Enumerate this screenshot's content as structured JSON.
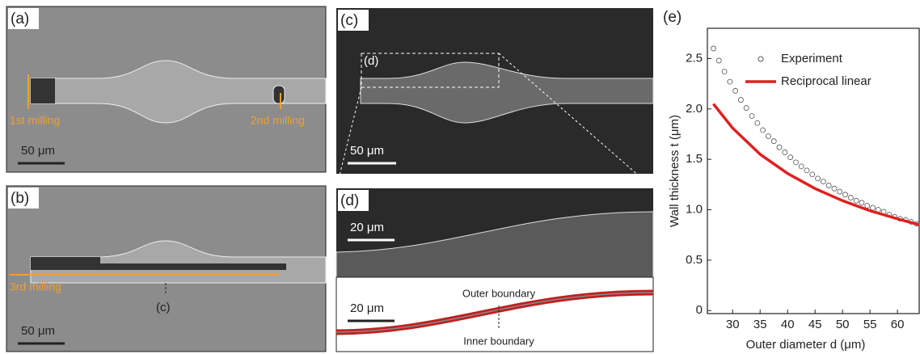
{
  "panels": {
    "a": {
      "label": "(a)",
      "notes": [
        "1st milling",
        "2nd milling"
      ],
      "scale": "50 μm"
    },
    "b": {
      "label": "(b)",
      "notes": [
        "3rd milling",
        "(c)"
      ],
      "scale": "50 μm"
    },
    "c": {
      "label": "(c)",
      "inset": "(d)",
      "scale": "50 μm"
    },
    "d": {
      "label": "(d)",
      "scale_top": "20 μm",
      "scale_bottom": "20 μm",
      "outer": "Outer boundary",
      "inner": "Inner boundary"
    },
    "e": {
      "label": "(e)"
    }
  },
  "chart_data": {
    "type": "line",
    "xlabel": "Outer diameter d (μm)",
    "ylabel": "Wall thickness t (μm)",
    "xlim": [
      25.4,
      64.1
    ],
    "ylim": [
      -0.03,
      2.8
    ],
    "xticks": [
      30,
      35,
      40,
      45,
      50,
      55,
      60
    ],
    "yticks": [
      0,
      0.5,
      1.0,
      1.5,
      2.0,
      2.5
    ],
    "ytick_labels": [
      "0",
      "0.5",
      "1.0",
      "1.5",
      "2.0",
      "2.5"
    ],
    "legend": "upper right",
    "series": [
      {
        "name": "Experiment",
        "color": "#555555",
        "marker": "open-circle",
        "x": [
          26.5,
          27.5,
          28.5,
          29.5,
          30.5,
          31.5,
          32.5,
          33.5,
          34.5,
          35.5,
          36.5,
          37.5,
          38.5,
          39.5,
          40.5,
          41.5,
          42.5,
          43.5,
          44.5,
          45.5,
          46.5,
          47.5,
          48.5,
          49.5,
          50.5,
          51.5,
          52.5,
          53.5,
          54.5,
          55.5,
          56.5,
          57.5,
          58.5,
          59.5,
          60.5,
          61.5,
          62.5,
          63.5
        ],
        "values": [
          2.6,
          2.48,
          2.37,
          2.27,
          2.18,
          2.09,
          2.01,
          1.93,
          1.86,
          1.79,
          1.73,
          1.68,
          1.62,
          1.57,
          1.52,
          1.47,
          1.43,
          1.39,
          1.35,
          1.31,
          1.28,
          1.24,
          1.21,
          1.18,
          1.15,
          1.12,
          1.09,
          1.07,
          1.04,
          1.02,
          1.0,
          0.98,
          0.95,
          0.93,
          0.91,
          0.9,
          0.88,
          0.86
        ]
      },
      {
        "name": "Reciprocal linear",
        "color": "#e02020",
        "marker": "none",
        "x": [
          26.5,
          30,
          35,
          40,
          45,
          50,
          55,
          60,
          64
        ],
        "values": [
          2.05,
          1.81,
          1.55,
          1.36,
          1.21,
          1.09,
          0.99,
          0.91,
          0.85
        ]
      }
    ]
  }
}
